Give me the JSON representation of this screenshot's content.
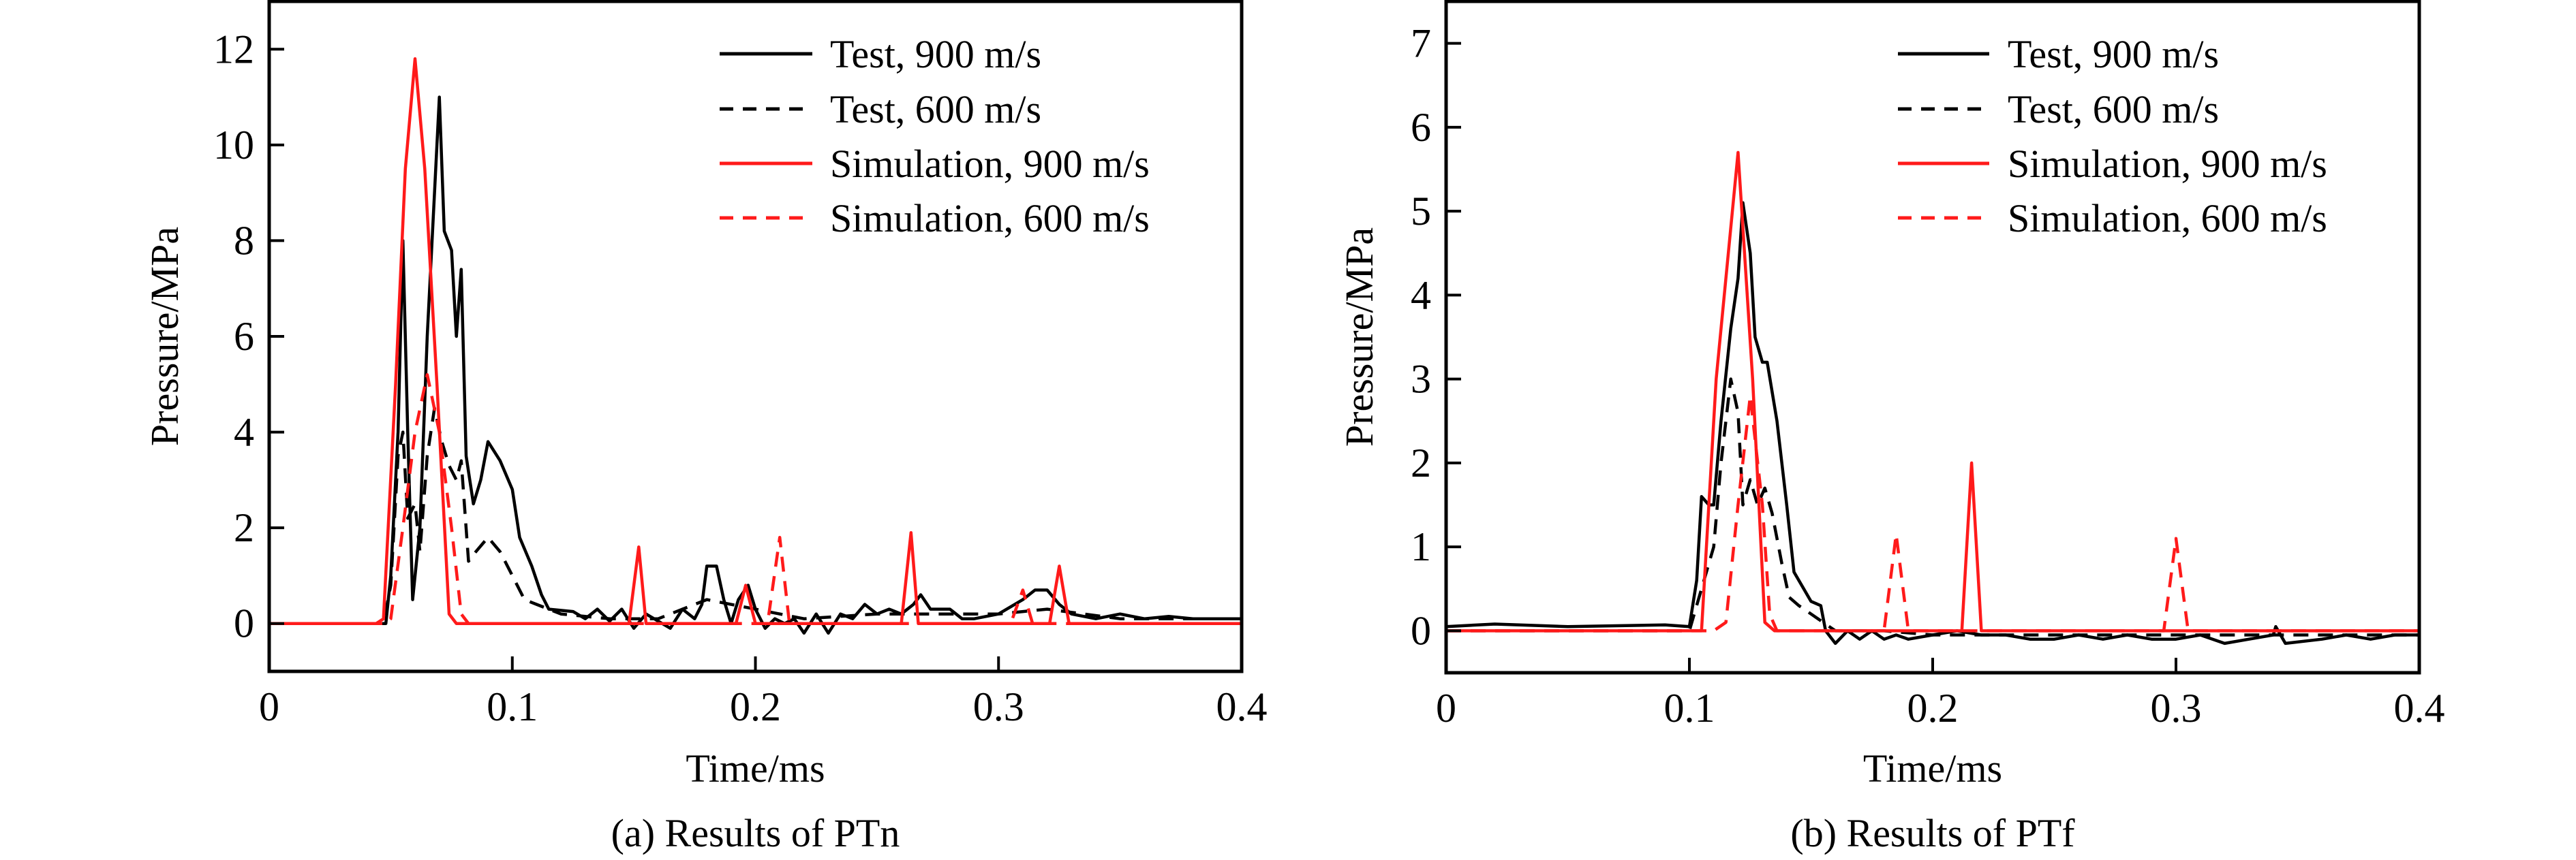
{
  "chart_data": [
    {
      "type": "line",
      "caption": "(a) Results of PTn",
      "xlabel": "Time/ms",
      "ylabel": "Pressure/MPa",
      "xlim": [
        0,
        0.4
      ],
      "ylim": [
        -1,
        13
      ],
      "xticks": [
        0,
        0.1,
        0.2,
        0.3,
        0.4
      ],
      "xtick_labels": [
        "0",
        "0.1",
        "0.2",
        "0.3",
        "0.4"
      ],
      "yticks": [
        0,
        2,
        4,
        6,
        8,
        10,
        12
      ],
      "ytick_labels": [
        "0",
        "2",
        "4",
        "6",
        "8",
        "10",
        "12"
      ],
      "legend_position": "top-right",
      "series": [
        {
          "name": "Test, 900 m/s",
          "color": "#000000",
          "dash": false,
          "x": [
            0,
            0.045,
            0.048,
            0.05,
            0.053,
            0.055,
            0.057,
            0.059,
            0.062,
            0.065,
            0.068,
            0.07,
            0.072,
            0.075,
            0.077,
            0.079,
            0.081,
            0.084,
            0.087,
            0.09,
            0.095,
            0.1,
            0.103,
            0.108,
            0.112,
            0.115,
            0.125,
            0.13,
            0.135,
            0.14,
            0.145,
            0.15,
            0.155,
            0.16,
            0.165,
            0.17,
            0.175,
            0.178,
            0.18,
            0.184,
            0.187,
            0.19,
            0.193,
            0.197,
            0.2,
            0.204,
            0.208,
            0.212,
            0.216,
            0.22,
            0.225,
            0.23,
            0.235,
            0.24,
            0.245,
            0.25,
            0.255,
            0.26,
            0.265,
            0.268,
            0.272,
            0.28,
            0.285,
            0.29,
            0.3,
            0.31,
            0.315,
            0.32,
            0.325,
            0.33,
            0.34,
            0.35,
            0.36,
            0.37,
            0.38,
            0.39,
            0.4
          ],
          "y": [
            0,
            0,
            0,
            1,
            4,
            8,
            4,
            0.5,
            2,
            6,
            9,
            11,
            8.2,
            7.8,
            6,
            7.4,
            3.5,
            2.5,
            3,
            3.8,
            3.4,
            2.8,
            1.8,
            1.2,
            0.6,
            0.3,
            0.25,
            0.1,
            0.3,
            0.05,
            0.3,
            -0.1,
            0.2,
            0.05,
            -0.1,
            0.3,
            0.1,
            0.4,
            1.2,
            1.2,
            0.5,
            0,
            0.5,
            0.8,
            0.3,
            -0.1,
            0.1,
            0,
            0.1,
            -0.2,
            0.2,
            -0.2,
            0.2,
            0.1,
            0.4,
            0.2,
            0.3,
            0.2,
            0.4,
            0.6,
            0.3,
            0.3,
            0.1,
            0.1,
            0.2,
            0.5,
            0.7,
            0.7,
            0.4,
            0.2,
            0.1,
            0.2,
            0.1,
            0.15,
            0.1,
            0.1,
            0.1
          ]
        },
        {
          "name": "Test, 600 m/s",
          "color": "#000000",
          "dash": true,
          "x": [
            0,
            0.047,
            0.05,
            0.053,
            0.055,
            0.057,
            0.06,
            0.062,
            0.065,
            0.068,
            0.071,
            0.074,
            0.077,
            0.079,
            0.082,
            0.085,
            0.09,
            0.095,
            0.1,
            0.105,
            0.11,
            0.12,
            0.14,
            0.16,
            0.18,
            0.2,
            0.22,
            0.25,
            0.28,
            0.3,
            0.32,
            0.35,
            0.4
          ],
          "y": [
            0,
            0,
            0.8,
            3.5,
            4,
            2.2,
            2.5,
            1.5,
            3.5,
            4.5,
            3.8,
            3.3,
            3,
            3.4,
            1.3,
            1.5,
            1.8,
            1.5,
            1,
            0.5,
            0.4,
            0.2,
            0.1,
            0.1,
            0.5,
            0.3,
            0.1,
            0.2,
            0.2,
            0.2,
            0.3,
            0.1,
            0.1
          ]
        },
        {
          "name": "Simulation, 900 m/s",
          "color": "#ff1a1a",
          "dash": false,
          "x": [
            0,
            0.044,
            0.047,
            0.052,
            0.056,
            0.06,
            0.064,
            0.069,
            0.074,
            0.077,
            0.148,
            0.152,
            0.155,
            0.192,
            0.196,
            0.2,
            0.26,
            0.264,
            0.267,
            0.321,
            0.325,
            0.329,
            0.4
          ],
          "y": [
            0,
            0,
            0.1,
            5,
            9.5,
            11.8,
            9.5,
            5,
            0.2,
            0,
            0,
            1.6,
            0,
            0,
            0.8,
            0,
            0,
            1.9,
            0,
            0,
            1.2,
            0,
            0
          ]
        },
        {
          "name": "Simulation, 600 m/s",
          "color": "#ff1a1a",
          "dash": true,
          "x": [
            0,
            0.048,
            0.05,
            0.055,
            0.06,
            0.065,
            0.07,
            0.075,
            0.079,
            0.082,
            0.205,
            0.21,
            0.214,
            0.305,
            0.31,
            0.314,
            0.4
          ],
          "y": [
            0,
            0,
            0.1,
            2,
            4,
            5.2,
            4,
            2,
            0.2,
            0,
            0,
            1.8,
            0,
            0,
            0.7,
            0,
            0
          ]
        }
      ]
    },
    {
      "type": "line",
      "caption": "(b) Results of PTf",
      "xlabel": "Time/ms",
      "ylabel": "Pressure/MPa",
      "xlim": [
        0,
        0.4
      ],
      "ylim": [
        -0.5,
        7.5
      ],
      "xticks": [
        0,
        0.1,
        0.2,
        0.3,
        0.4
      ],
      "xtick_labels": [
        "0",
        "0.1",
        "0.2",
        "0.3",
        "0.4"
      ],
      "yticks": [
        0,
        1,
        2,
        3,
        4,
        5,
        6,
        7
      ],
      "ytick_labels": [
        "0",
        "1",
        "2",
        "3",
        "4",
        "5",
        "6",
        "7"
      ],
      "legend_position": "top-right",
      "series": [
        {
          "name": "Test, 900 m/s",
          "color": "#000000",
          "dash": false,
          "x": [
            0,
            0.02,
            0.05,
            0.09,
            0.1,
            0.103,
            0.105,
            0.108,
            0.11,
            0.113,
            0.117,
            0.12,
            0.122,
            0.125,
            0.127,
            0.13,
            0.132,
            0.136,
            0.14,
            0.143,
            0.147,
            0.15,
            0.154,
            0.156,
            0.16,
            0.165,
            0.17,
            0.175,
            0.18,
            0.185,
            0.19,
            0.2,
            0.21,
            0.22,
            0.23,
            0.24,
            0.25,
            0.26,
            0.27,
            0.28,
            0.29,
            0.3,
            0.31,
            0.32,
            0.33,
            0.34,
            0.341,
            0.345,
            0.36,
            0.37,
            0.38,
            0.39,
            0.4
          ],
          "y": [
            0.05,
            0.08,
            0.05,
            0.07,
            0.05,
            0.6,
            1.6,
            1.5,
            1.5,
            2.5,
            3.6,
            4.2,
            5.1,
            4.5,
            3.5,
            3.2,
            3.2,
            2.5,
            1.5,
            0.7,
            0.5,
            0.35,
            0.3,
            0,
            -0.15,
            0,
            -0.1,
            0,
            -0.1,
            -0.05,
            -0.1,
            -0.05,
            0,
            -0.05,
            -0.05,
            -0.1,
            -0.1,
            -0.05,
            -0.1,
            -0.05,
            -0.1,
            -0.1,
            -0.05,
            -0.15,
            -0.1,
            -0.05,
            0.05,
            -0.15,
            -0.1,
            -0.05,
            -0.1,
            -0.05,
            -0.05
          ]
        },
        {
          "name": "Test, 600 m/s",
          "color": "#000000",
          "dash": true,
          "x": [
            0,
            0.1,
            0.105,
            0.11,
            0.113,
            0.117,
            0.12,
            0.122,
            0.125,
            0.128,
            0.131,
            0.134,
            0.138,
            0.141,
            0.145,
            0.15,
            0.16,
            0.18,
            0.2,
            0.4
          ],
          "y": [
            0,
            0,
            0.5,
            1,
            2,
            3,
            2.6,
            1.5,
            1.8,
            1.5,
            1.7,
            1.4,
            0.8,
            0.4,
            0.3,
            0.2,
            0,
            0,
            -0.05,
            -0.05
          ]
        },
        {
          "name": "Simulation, 900 m/s",
          "color": "#ff1a1a",
          "dash": false,
          "x": [
            0,
            0.105,
            0.111,
            0.12,
            0.126,
            0.131,
            0.135,
            0.212,
            0.216,
            0.22,
            0.4
          ],
          "y": [
            0,
            0,
            3,
            5.7,
            3,
            0.1,
            0,
            0,
            2,
            0,
            0
          ]
        },
        {
          "name": "Simulation, 600 m/s",
          "color": "#ff1a1a",
          "dash": true,
          "x": [
            0,
            0.11,
            0.115,
            0.12,
            0.125,
            0.13,
            0.133,
            0.136,
            0.18,
            0.185,
            0.19,
            0.295,
            0.3,
            0.305,
            0.4
          ],
          "y": [
            0,
            0,
            0.1,
            1.5,
            2.8,
            1.5,
            0.2,
            0,
            0,
            1.15,
            0,
            0,
            1.1,
            0,
            0
          ]
        }
      ]
    }
  ]
}
